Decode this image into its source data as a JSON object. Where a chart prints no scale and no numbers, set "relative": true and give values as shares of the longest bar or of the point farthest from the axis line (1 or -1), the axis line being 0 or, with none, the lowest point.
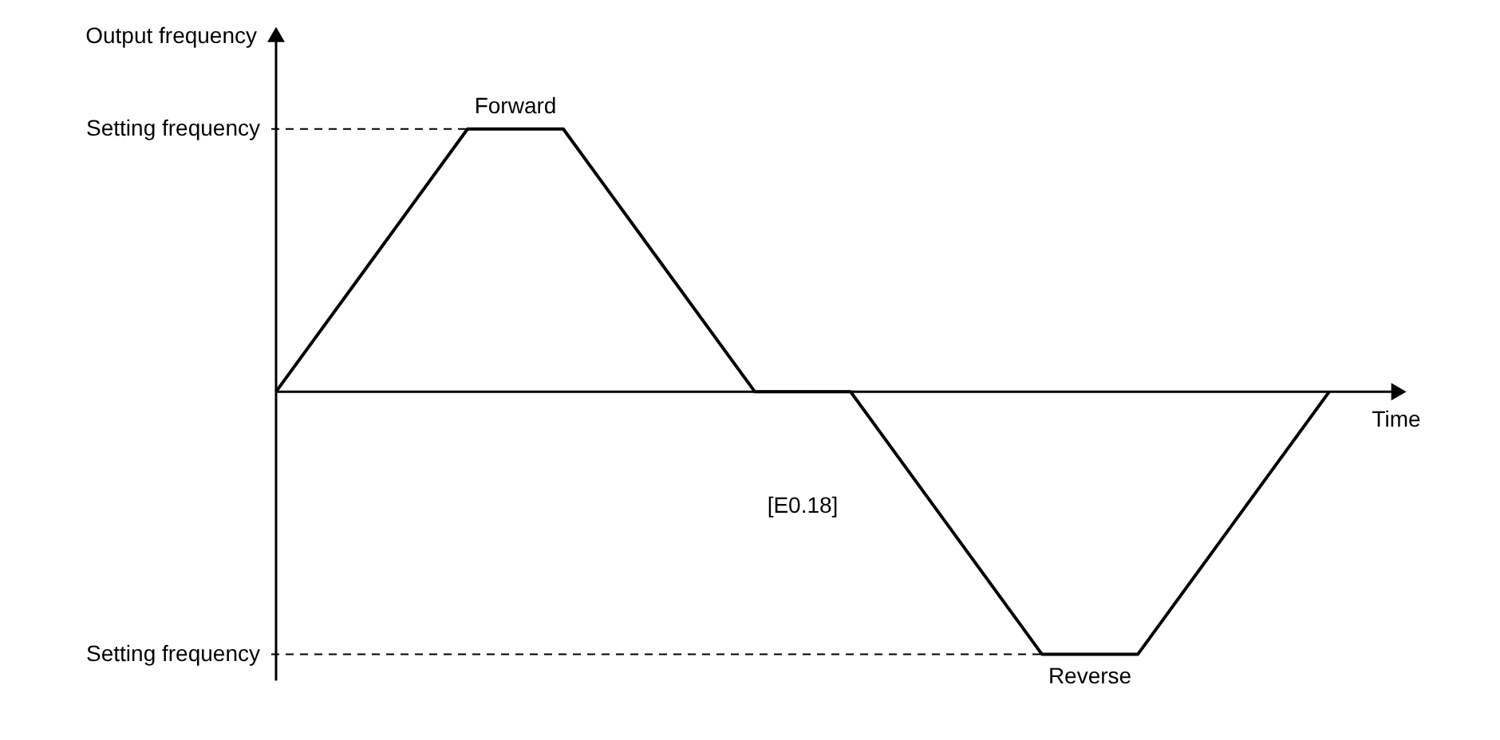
{
  "chart_data": {
    "type": "line",
    "relative": true,
    "xlabel": "Time",
    "ylabel": "Output frequency",
    "categories": [
      null,
      null,
      null,
      null,
      null,
      null,
      null,
      null,
      null,
      null,
      null,
      null
    ],
    "series": [
      {
        "color": "#000000",
        "values": [
          0,
          0.5,
          1,
          1,
          0.5,
          0,
          0,
          -0.5,
          -1,
          -1,
          -0.5,
          0
        ]
      }
    ],
    "ref_lines": [
      {
        "axis": "y",
        "value": 1,
        "label": "Setting frequency",
        "line_style": "dashed"
      },
      {
        "axis": "y",
        "value": -1,
        "label": "Setting frequency",
        "line_style": "dashed"
      }
    ],
    "annotations": [
      {
        "text": "Forward",
        "y": 1
      },
      {
        "text": "Reverse",
        "y": -1
      },
      "[E0.18]"
    ],
    "marker": "none",
    "line_style": "solid"
  }
}
